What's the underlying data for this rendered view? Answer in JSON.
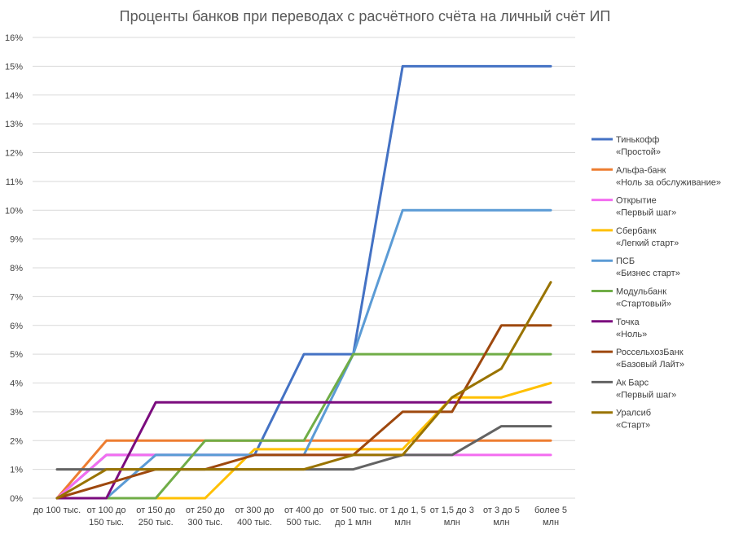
{
  "chart_data": {
    "type": "line",
    "title": "Проценты банков при переводах с расчётного счёта на личный счёт ИП",
    "xlabel": "",
    "ylabel": "",
    "ylim": [
      0,
      16
    ],
    "y_unit": "%",
    "y_ticks": [
      "0%",
      "1%",
      "2%",
      "3%",
      "4%",
      "5%",
      "6%",
      "7%",
      "8%",
      "9%",
      "10%",
      "11%",
      "12%",
      "13%",
      "14%",
      "15%",
      "16%"
    ],
    "grid": true,
    "legend_position": "right",
    "categories": [
      [
        "до 100 тыс."
      ],
      [
        "от 100 до",
        "150 тыс."
      ],
      [
        "от 150 до",
        "250 тыс."
      ],
      [
        "от 250 до",
        "300 тыс."
      ],
      [
        "от 300 до",
        "400 тыс."
      ],
      [
        "от 400 до",
        "500 тыс."
      ],
      [
        "от 500 тыс.",
        "до 1 млн"
      ],
      [
        "от 1 до 1, 5",
        "млн"
      ],
      [
        "от 1,5 до 3",
        "млн"
      ],
      [
        "от 3 до 5",
        "млн"
      ],
      [
        "более 5",
        "млн"
      ]
    ],
    "series": [
      {
        "name": [
          "Тинькофф",
          "«Простой»"
        ],
        "color": "#4472C4",
        "values": [
          0,
          1.5,
          1.5,
          1.5,
          1.5,
          5,
          5,
          15,
          15,
          15,
          15
        ]
      },
      {
        "name": [
          "Альфа-банк",
          "«Ноль за обслуживание»"
        ],
        "color": "#ED7D31",
        "values": [
          0,
          2,
          2,
          2,
          2,
          2,
          2,
          2,
          2,
          2,
          2
        ]
      },
      {
        "name": [
          "Открытие",
          "«Первый шаг»"
        ],
        "color": "#F36DF0",
        "values": [
          0,
          1.5,
          1.5,
          1.5,
          1.5,
          1.5,
          1.5,
          1.5,
          1.5,
          1.5,
          1.5
        ]
      },
      {
        "name": [
          "Сбербанк",
          "«Легкий старт»"
        ],
        "color": "#FFC000",
        "values": [
          0,
          0,
          0,
          0,
          1.7,
          1.7,
          1.7,
          1.7,
          3.5,
          3.5,
          4
        ]
      },
      {
        "name": [
          "ПСБ",
          "«Бизнес старт»"
        ],
        "color": "#5B9BD5",
        "values": [
          0,
          0,
          1.5,
          1.5,
          1.5,
          1.5,
          5,
          10,
          10,
          10,
          10
        ]
      },
      {
        "name": [
          "Модульбанк",
          "«Стартовый»"
        ],
        "color": "#70AD47",
        "values": [
          0,
          0,
          0,
          2,
          2,
          2,
          5,
          5,
          5,
          5,
          5
        ]
      },
      {
        "name": [
          "Точка",
          "«Ноль»"
        ],
        "color": "#7B0C7E",
        "values": [
          0,
          0,
          3.33,
          3.33,
          3.33,
          3.33,
          3.33,
          3.33,
          3.33,
          3.33,
          3.33
        ]
      },
      {
        "name": [
          "РоссельхозБанк",
          "«Базовый Лайт»"
        ],
        "color": "#9E480E",
        "values": [
          0,
          0.5,
          1,
          1,
          1.5,
          1.5,
          1.5,
          3,
          3,
          6,
          6
        ]
      },
      {
        "name": [
          "Ак Барс",
          "«Первый шаг»"
        ],
        "color": "#636363",
        "values": [
          1,
          1,
          1,
          1,
          1,
          1,
          1,
          1.5,
          1.5,
          2.5,
          2.5
        ]
      },
      {
        "name": [
          "Уралсиб",
          "«Старт»"
        ],
        "color": "#997300",
        "values": [
          0,
          1,
          1,
          1,
          1,
          1,
          1.5,
          1.5,
          3.5,
          4.5,
          7.5
        ]
      }
    ]
  }
}
